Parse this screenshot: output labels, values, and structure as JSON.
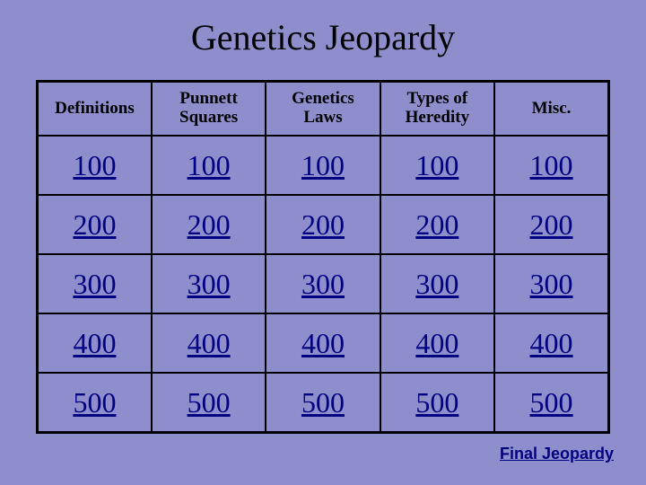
{
  "title": "Genetics Jeopardy",
  "background_color": "#8e8ecd",
  "board": {
    "border_color": "#000000",
    "categories": [
      "Definitions",
      "Punnett Squares",
      "Genetics Laws",
      "Types of Heredity",
      "Misc."
    ],
    "values": [
      [
        "100",
        "100",
        "100",
        "100",
        "100"
      ],
      [
        "200",
        "200",
        "200",
        "200",
        "200"
      ],
      [
        "300",
        "300",
        "300",
        "300",
        "300"
      ],
      [
        "400",
        "400",
        "400",
        "400",
        "400"
      ],
      [
        "500",
        "500",
        "500",
        "500",
        "500"
      ]
    ],
    "value_color": "#000080",
    "value_fontsize": 32,
    "header_fontsize": 19
  },
  "final_link": {
    "label": "Final Jeopardy",
    "color": "#000080"
  }
}
